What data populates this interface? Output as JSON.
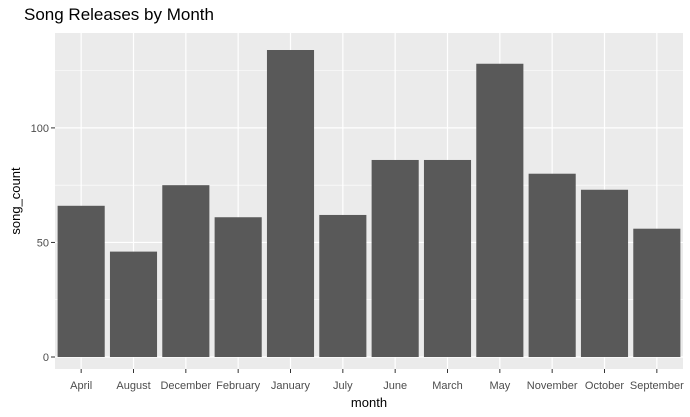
{
  "chart_data": {
    "type": "bar",
    "title": "Song Releases by Month",
    "xlabel": "month",
    "ylabel": "song_count",
    "categories": [
      "April",
      "August",
      "December",
      "February",
      "January",
      "July",
      "June",
      "March",
      "May",
      "November",
      "October",
      "September"
    ],
    "values": [
      66,
      46,
      75,
      61,
      134,
      62,
      86,
      86,
      128,
      80,
      73,
      56
    ],
    "ylim": [
      0,
      140
    ],
    "yticks": [
      0,
      50,
      100
    ],
    "grid": true,
    "legend": "none",
    "colors": {
      "bar": "#595959",
      "panel": "#ebebeb",
      "grid_major": "#ffffff",
      "tick_text": "#4d4d4d"
    }
  }
}
